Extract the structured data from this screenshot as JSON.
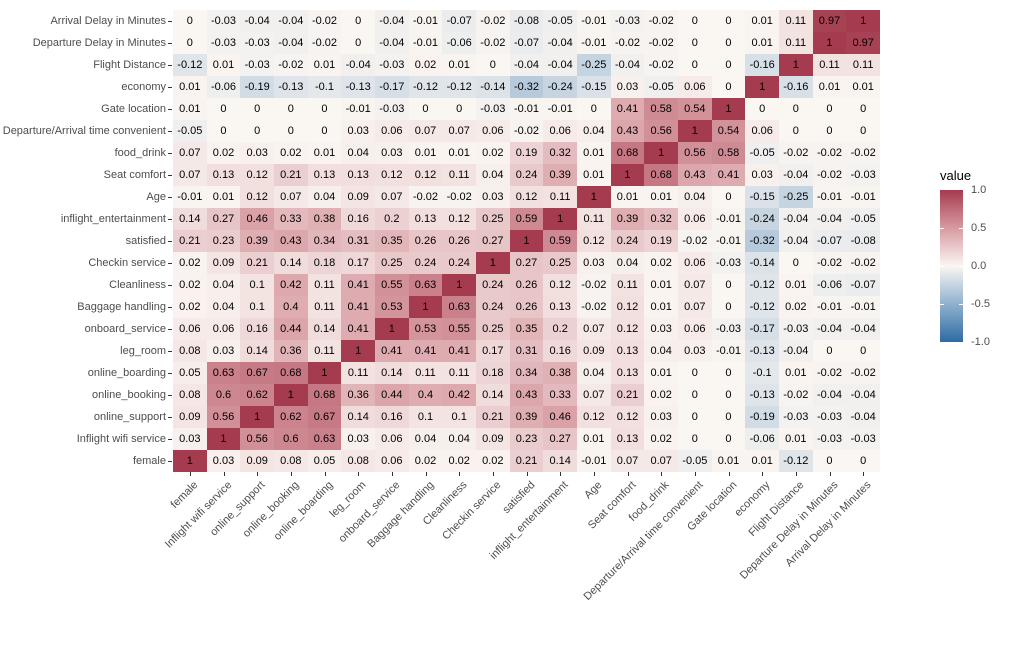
{
  "chart_data": {
    "type": "heatmap",
    "title": "",
    "xlabel": "",
    "ylabel": "",
    "grid": false,
    "value_range": [
      -1,
      1
    ],
    "legend": {
      "title": "value",
      "position": "right",
      "tick_labels": [
        "1.0",
        "0.5",
        "0.0",
        "-0.5",
        "-1.0"
      ],
      "tick_values": [
        1,
        0.5,
        0,
        -0.5,
        -1
      ]
    },
    "colors": {
      "positive_max": "#A43B4F",
      "positive_mid": "#D79AA1",
      "midpoint": "#FAF6F2",
      "negative_mid": "#8FB1CF",
      "negative_max": "#2E6BA3",
      "cell_text": "#000000",
      "axis_text": "#4d4d4d",
      "tick_mark": "#333333"
    },
    "categories": [
      "female",
      "Inflight wifi service",
      "online_support",
      "online_booking",
      "online_boarding",
      "leg_room",
      "onboard_service",
      "Baggage handling",
      "Cleanliness",
      "Checkin service",
      "satisfied",
      "inflight_entertainment",
      "Age",
      "Seat comfort",
      "food_drink",
      "Departure/Arrival time convenient",
      "Gate location",
      "economy",
      "Flight Distance",
      "Departure Delay in Minutes",
      "Arrival Delay in Minutes"
    ],
    "rows": [
      {
        "label": "Arrival Delay in Minutes",
        "values": [
          0,
          -0.03,
          -0.04,
          -0.04,
          -0.02,
          0,
          -0.04,
          -0.01,
          -0.07,
          -0.02,
          -0.08,
          -0.05,
          -0.01,
          -0.03,
          -0.02,
          0,
          0,
          0.01,
          0.11,
          0.97,
          1
        ]
      },
      {
        "label": "Departure Delay in Minutes",
        "values": [
          0,
          -0.03,
          -0.03,
          -0.04,
          -0.02,
          0,
          -0.04,
          -0.01,
          -0.06,
          -0.02,
          -0.07,
          -0.04,
          -0.01,
          -0.02,
          -0.02,
          0,
          0,
          0.01,
          0.11,
          1,
          0.97
        ]
      },
      {
        "label": "Flight Distance",
        "values": [
          -0.12,
          0.01,
          -0.03,
          -0.02,
          0.01,
          -0.04,
          -0.03,
          0.02,
          0.01,
          0,
          -0.04,
          -0.04,
          -0.25,
          -0.04,
          -0.02,
          0,
          0,
          -0.16,
          1,
          0.11,
          0.11
        ]
      },
      {
        "label": "economy",
        "values": [
          0.01,
          -0.06,
          -0.19,
          -0.13,
          -0.1,
          -0.13,
          -0.17,
          -0.12,
          -0.12,
          -0.14,
          -0.32,
          -0.24,
          -0.15,
          0.03,
          -0.05,
          0.06,
          0,
          1,
          -0.16,
          0.01,
          0.01
        ]
      },
      {
        "label": "Gate location",
        "values": [
          0.01,
          0,
          0,
          0,
          0,
          -0.01,
          -0.03,
          0,
          0,
          -0.03,
          -0.01,
          -0.01,
          0,
          0.41,
          0.58,
          0.54,
          1,
          0,
          0,
          0,
          0
        ]
      },
      {
        "label": "Departure/Arrival time convenient",
        "values": [
          -0.05,
          0,
          0,
          0,
          0,
          0.03,
          0.06,
          0.07,
          0.07,
          0.06,
          -0.02,
          0.06,
          0.04,
          0.43,
          0.56,
          1,
          0.54,
          0.06,
          0,
          0,
          0
        ]
      },
      {
        "label": "food_drink",
        "values": [
          0.07,
          0.02,
          0.03,
          0.02,
          0.01,
          0.04,
          0.03,
          0.01,
          0.01,
          0.02,
          0.19,
          0.32,
          0.01,
          0.68,
          1,
          0.56,
          0.58,
          -0.05,
          -0.02,
          -0.02,
          -0.02
        ]
      },
      {
        "label": "Seat comfort",
        "values": [
          0.07,
          0.13,
          0.12,
          0.21,
          0.13,
          0.13,
          0.12,
          0.12,
          0.11,
          0.04,
          0.24,
          0.39,
          0.01,
          1,
          0.68,
          0.43,
          0.41,
          0.03,
          -0.04,
          -0.02,
          -0.03
        ]
      },
      {
        "label": "Age",
        "values": [
          -0.01,
          0.01,
          0.12,
          0.07,
          0.04,
          0.09,
          0.07,
          -0.02,
          -0.02,
          0.03,
          0.12,
          0.11,
          1,
          0.01,
          0.01,
          0.04,
          0,
          -0.15,
          -0.25,
          -0.01,
          -0.01
        ]
      },
      {
        "label": "inflight_entertainment",
        "values": [
          0.14,
          0.27,
          0.46,
          0.33,
          0.38,
          0.16,
          0.2,
          0.13,
          0.12,
          0.25,
          0.59,
          1,
          0.11,
          0.39,
          0.32,
          0.06,
          -0.01,
          -0.24,
          -0.04,
          -0.04,
          -0.05
        ]
      },
      {
        "label": "satisfied",
        "values": [
          0.21,
          0.23,
          0.39,
          0.43,
          0.34,
          0.31,
          0.35,
          0.26,
          0.26,
          0.27,
          1,
          0.59,
          0.12,
          0.24,
          0.19,
          -0.02,
          -0.01,
          -0.32,
          -0.04,
          -0.07,
          -0.08
        ]
      },
      {
        "label": "Checkin service",
        "values": [
          0.02,
          0.09,
          0.21,
          0.14,
          0.18,
          0.17,
          0.25,
          0.24,
          0.24,
          1,
          0.27,
          0.25,
          0.03,
          0.04,
          0.02,
          0.06,
          -0.03,
          -0.14,
          0,
          -0.02,
          -0.02
        ]
      },
      {
        "label": "Cleanliness",
        "values": [
          0.02,
          0.04,
          0.1,
          0.42,
          0.11,
          0.41,
          0.55,
          0.63,
          1,
          0.24,
          0.26,
          0.12,
          -0.02,
          0.11,
          0.01,
          0.07,
          0,
          -0.12,
          0.01,
          -0.06,
          -0.07
        ]
      },
      {
        "label": "Baggage handling",
        "values": [
          0.02,
          0.04,
          0.1,
          0.4,
          0.11,
          0.41,
          0.53,
          1,
          0.63,
          0.24,
          0.26,
          0.13,
          -0.02,
          0.12,
          0.01,
          0.07,
          0,
          -0.12,
          0.02,
          -0.01,
          -0.01
        ]
      },
      {
        "label": "onboard_service",
        "values": [
          0.06,
          0.06,
          0.16,
          0.44,
          0.14,
          0.41,
          1,
          0.53,
          0.55,
          0.25,
          0.35,
          0.2,
          0.07,
          0.12,
          0.03,
          0.06,
          -0.03,
          -0.17,
          -0.03,
          -0.04,
          -0.04
        ]
      },
      {
        "label": "leg_room",
        "values": [
          0.08,
          0.03,
          0.14,
          0.36,
          0.11,
          1,
          0.41,
          0.41,
          0.41,
          0.17,
          0.31,
          0.16,
          0.09,
          0.13,
          0.04,
          0.03,
          -0.01,
          -0.13,
          -0.04,
          0,
          0
        ]
      },
      {
        "label": "online_boarding",
        "values": [
          0.05,
          0.63,
          0.67,
          0.68,
          1,
          0.11,
          0.14,
          0.11,
          0.11,
          0.18,
          0.34,
          0.38,
          0.04,
          0.13,
          0.01,
          0,
          0,
          -0.1,
          0.01,
          -0.02,
          -0.02
        ]
      },
      {
        "label": "online_booking",
        "values": [
          0.08,
          0.6,
          0.62,
          1,
          0.68,
          0.36,
          0.44,
          0.4,
          0.42,
          0.14,
          0.43,
          0.33,
          0.07,
          0.21,
          0.02,
          0,
          0,
          -0.13,
          -0.02,
          -0.04,
          -0.04
        ]
      },
      {
        "label": "online_support",
        "values": [
          0.09,
          0.56,
          1,
          0.62,
          0.67,
          0.14,
          0.16,
          0.1,
          0.1,
          0.21,
          0.39,
          0.46,
          0.12,
          0.12,
          0.03,
          0,
          0,
          -0.19,
          -0.03,
          -0.03,
          -0.04
        ]
      },
      {
        "label": "Inflight wifi service",
        "values": [
          0.03,
          1,
          0.56,
          0.6,
          0.63,
          0.03,
          0.06,
          0.04,
          0.04,
          0.09,
          0.23,
          0.27,
          0.01,
          0.13,
          0.02,
          0,
          0,
          -0.06,
          0.01,
          -0.03,
          -0.03
        ]
      },
      {
        "label": "female",
        "values": [
          1,
          0.03,
          0.09,
          0.08,
          0.05,
          0.08,
          0.06,
          0.02,
          0.02,
          0.02,
          0.21,
          0.14,
          -0.01,
          0.07,
          0.07,
          -0.05,
          0.01,
          0.01,
          -0.12,
          0,
          0
        ]
      }
    ]
  }
}
